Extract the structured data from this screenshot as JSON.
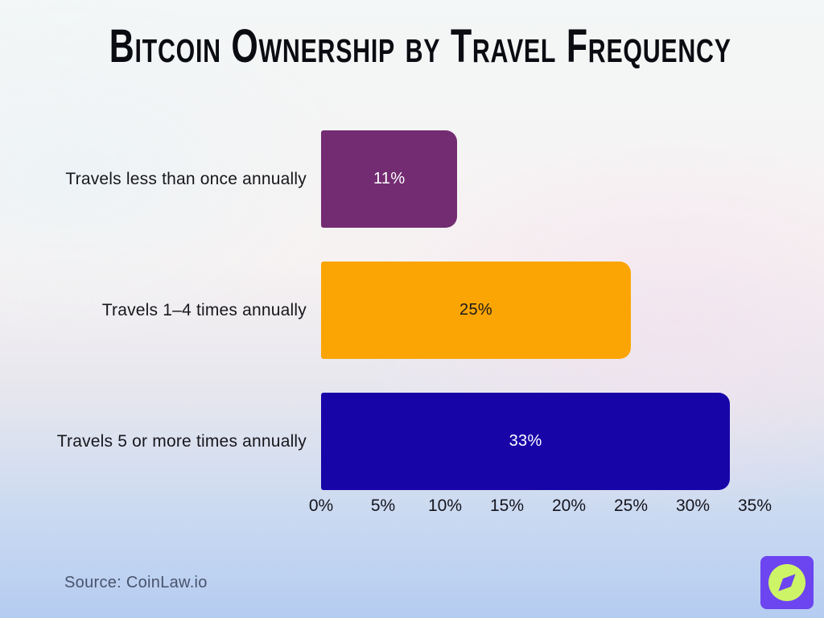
{
  "title": "Bitcoin Ownership by Travel Frequency",
  "source": "Source: CoinLaw.io",
  "chart_data": {
    "type": "bar",
    "orientation": "horizontal",
    "title": "Bitcoin Ownership by Travel Frequency",
    "categories": [
      "Travels less than once annually",
      "Travels 1–4 times annually",
      "Travels 5 or more times annually"
    ],
    "values": [
      11,
      25,
      33
    ],
    "value_labels": [
      "11%",
      "25%",
      "33%"
    ],
    "bar_colors": [
      "#732C72",
      "#FBA504",
      "#1805A8"
    ],
    "value_label_colors": [
      "#FFFFFF",
      "#1A1A1A",
      "#FFFFFF"
    ],
    "x_ticks": [
      "0%",
      "5%",
      "10%",
      "15%",
      "20%",
      "25%",
      "30%",
      "35%"
    ],
    "xlim": [
      0,
      35
    ],
    "xlabel": "",
    "ylabel": "",
    "grid": false,
    "legend": false
  },
  "logo": {
    "name": "coinlaw-compass-logo",
    "square_color": "#6C45F0",
    "circle_color": "#CDF466"
  }
}
